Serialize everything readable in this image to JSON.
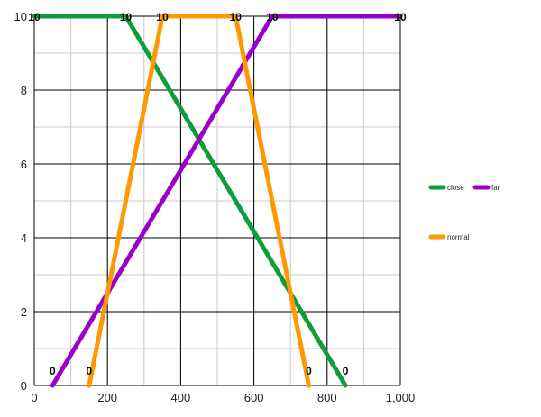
{
  "chart_data": {
    "type": "line",
    "title": "",
    "xlabel": "",
    "ylabel": "",
    "xlim": [
      0,
      1000
    ],
    "ylim": [
      0,
      10
    ],
    "x_ticks": [
      0,
      200,
      400,
      600,
      800,
      1000
    ],
    "x_tick_labels": [
      "0",
      "200",
      "400",
      "600",
      "800",
      "1,000"
    ],
    "y_ticks": [
      0,
      2,
      4,
      6,
      8,
      10
    ],
    "y_tick_labels": [
      "0",
      "2",
      "4",
      "6",
      "8",
      "10"
    ],
    "grid": true,
    "legend_position": "right",
    "series": [
      {
        "name": "close",
        "color": "#0f9d3a",
        "points": [
          [
            0,
            10
          ],
          [
            250,
            10
          ],
          [
            850,
            0
          ]
        ],
        "labels": [
          "10",
          "10",
          "0"
        ]
      },
      {
        "name": "far",
        "color": "#9a00c9",
        "points": [
          [
            50,
            0
          ],
          [
            650,
            10
          ],
          [
            1000,
            10
          ]
        ],
        "labels": [
          "0",
          "10",
          "10"
        ]
      },
      {
        "name": "normal",
        "color": "#ff9900",
        "points": [
          [
            150,
            0
          ],
          [
            350,
            10
          ],
          [
            550,
            10
          ],
          [
            750,
            0
          ]
        ],
        "labels": [
          "0",
          "10",
          "10",
          "0"
        ]
      }
    ]
  }
}
